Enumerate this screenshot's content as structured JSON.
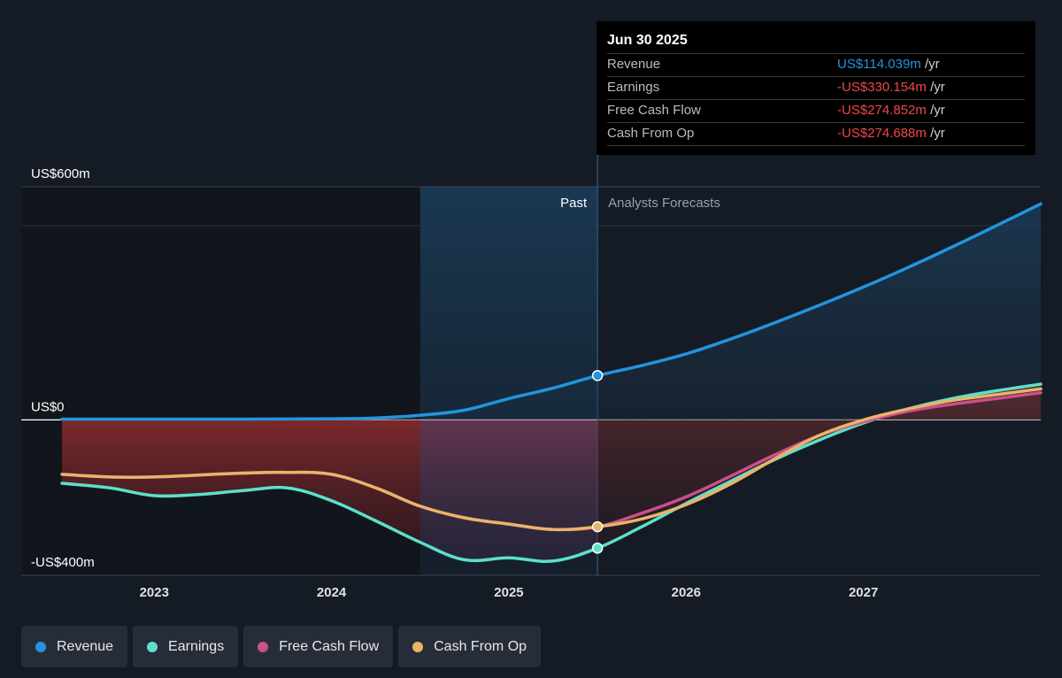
{
  "chart_data": {
    "type": "line",
    "ylim": [
      -400,
      600
    ],
    "y_ticks": [
      {
        "value": 600,
        "label": "US$600m"
      },
      {
        "value": 0,
        "label": "US$0"
      },
      {
        "value": -400,
        "label": "-US$400m"
      }
    ],
    "x_ticks": [
      {
        "value": 2023,
        "label": "2023"
      },
      {
        "value": 2024,
        "label": "2024"
      },
      {
        "value": 2025,
        "label": "2025"
      },
      {
        "value": 2026,
        "label": "2026"
      },
      {
        "value": 2027,
        "label": "2027"
      }
    ],
    "xlim": [
      2022.25,
      2028.0
    ],
    "past_label": "Past",
    "forecast_label": "Analysts Forecasts",
    "highlight_start": 2024.5,
    "divider_x": 2025.5,
    "series": [
      {
        "name": "Revenue",
        "color": "#2394df",
        "fill": true,
        "points": [
          [
            2022.48,
            2
          ],
          [
            2023.0,
            2
          ],
          [
            2023.5,
            2
          ],
          [
            2024.0,
            3
          ],
          [
            2024.25,
            5
          ],
          [
            2024.5,
            12
          ],
          [
            2024.75,
            25
          ],
          [
            2025.0,
            55
          ],
          [
            2025.25,
            82
          ],
          [
            2025.5,
            114
          ],
          [
            2025.75,
            140
          ],
          [
            2026.0,
            170
          ],
          [
            2026.25,
            208
          ],
          [
            2026.5,
            250
          ],
          [
            2026.75,
            295
          ],
          [
            2027.0,
            342
          ],
          [
            2027.25,
            392
          ],
          [
            2027.5,
            445
          ],
          [
            2027.75,
            500
          ],
          [
            2028.0,
            556
          ]
        ]
      },
      {
        "name": "Earnings",
        "color": "#5ce0cb",
        "fill": true,
        "points": [
          [
            2022.48,
            -163
          ],
          [
            2022.75,
            -175
          ],
          [
            2023.0,
            -195
          ],
          [
            2023.25,
            -192
          ],
          [
            2023.5,
            -182
          ],
          [
            2023.75,
            -175
          ],
          [
            2024.0,
            -208
          ],
          [
            2024.25,
            -260
          ],
          [
            2024.5,
            -315
          ],
          [
            2024.75,
            -360
          ],
          [
            2025.0,
            -355
          ],
          [
            2025.25,
            -363
          ],
          [
            2025.5,
            -330
          ],
          [
            2025.75,
            -275
          ],
          [
            2026.0,
            -215
          ],
          [
            2026.25,
            -158
          ],
          [
            2026.5,
            -102
          ],
          [
            2026.75,
            -52
          ],
          [
            2027.0,
            -8
          ],
          [
            2027.25,
            28
          ],
          [
            2027.5,
            55
          ],
          [
            2027.75,
            75
          ],
          [
            2028.0,
            92
          ]
        ]
      },
      {
        "name": "Free Cash Flow",
        "color": "#cc4f8a",
        "fill": false,
        "points": [
          [
            2022.48,
            -140
          ],
          [
            2022.75,
            -147
          ],
          [
            2023.0,
            -147
          ],
          [
            2023.25,
            -142
          ],
          [
            2023.5,
            -137
          ],
          [
            2023.75,
            -135
          ],
          [
            2024.0,
            -140
          ],
          [
            2024.25,
            -175
          ],
          [
            2024.5,
            -222
          ],
          [
            2024.75,
            -252
          ],
          [
            2025.0,
            -268
          ],
          [
            2025.25,
            -282
          ],
          [
            2025.5,
            -275
          ],
          [
            2025.75,
            -240
          ],
          [
            2026.0,
            -198
          ],
          [
            2026.25,
            -145
          ],
          [
            2026.5,
            -90
          ],
          [
            2026.75,
            -40
          ],
          [
            2027.0,
            -5
          ],
          [
            2027.25,
            22
          ],
          [
            2027.5,
            40
          ],
          [
            2027.75,
            55
          ],
          [
            2028.0,
            70
          ]
        ]
      },
      {
        "name": "Cash From Op",
        "color": "#e8b468",
        "fill": false,
        "points": [
          [
            2022.48,
            -140
          ],
          [
            2022.75,
            -147
          ],
          [
            2023.0,
            -147
          ],
          [
            2023.25,
            -142
          ],
          [
            2023.5,
            -137
          ],
          [
            2023.75,
            -135
          ],
          [
            2024.0,
            -140
          ],
          [
            2024.25,
            -175
          ],
          [
            2024.5,
            -222
          ],
          [
            2024.75,
            -252
          ],
          [
            2025.0,
            -268
          ],
          [
            2025.25,
            -282
          ],
          [
            2025.5,
            -275
          ],
          [
            2025.75,
            -255
          ],
          [
            2026.0,
            -218
          ],
          [
            2026.25,
            -165
          ],
          [
            2026.5,
            -100
          ],
          [
            2026.75,
            -40
          ],
          [
            2027.0,
            0
          ],
          [
            2027.25,
            28
          ],
          [
            2027.5,
            50
          ],
          [
            2027.75,
            65
          ],
          [
            2028.0,
            80
          ]
        ]
      }
    ]
  },
  "tooltip": {
    "date": "Jun 30 2025",
    "rows": [
      {
        "label": "Revenue",
        "value": "US$114.039m",
        "unit": "/yr",
        "color": "#2394df"
      },
      {
        "label": "Earnings",
        "value": "-US$330.154m",
        "unit": "/yr",
        "color": "#f04848"
      },
      {
        "label": "Free Cash Flow",
        "value": "-US$274.852m",
        "unit": "/yr",
        "color": "#f04848"
      },
      {
        "label": "Cash From Op",
        "value": "-US$274.688m",
        "unit": "/yr",
        "color": "#f04848"
      }
    ]
  },
  "legend": [
    {
      "label": "Revenue",
      "color": "#2394df"
    },
    {
      "label": "Earnings",
      "color": "#5ce0cb"
    },
    {
      "label": "Free Cash Flow",
      "color": "#cc4f8a"
    },
    {
      "label": "Cash From Op",
      "color": "#e8b468"
    }
  ]
}
